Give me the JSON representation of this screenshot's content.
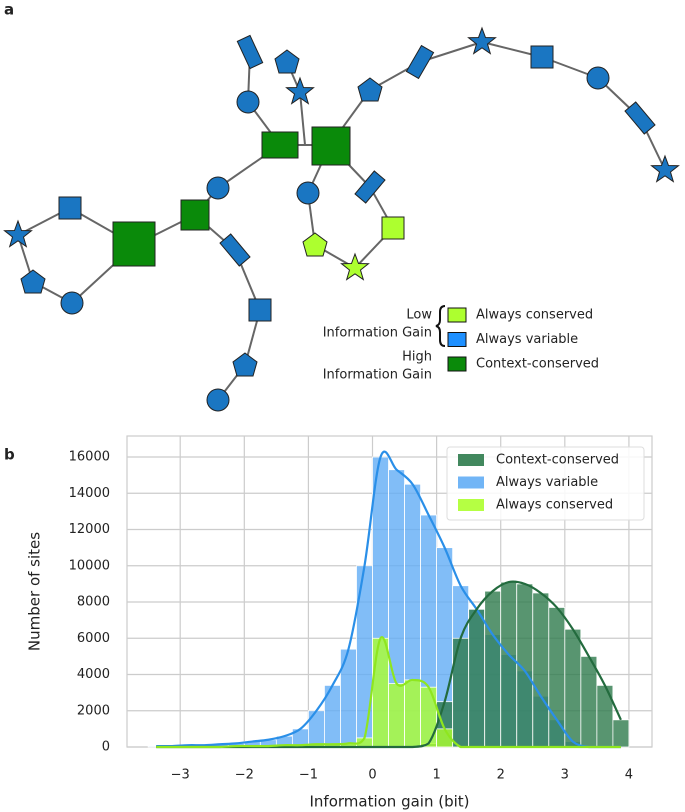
{
  "diagram": {
    "panel_label": "a",
    "legend": {
      "low_top": "Low",
      "low_bottom": "Information Gain",
      "high_top": "High",
      "high_bottom": "Information Gain",
      "entries": [
        {
          "label": "Always conserved",
          "color": "#adff2f"
        },
        {
          "label": "Always variable",
          "color": "#1e90ff"
        },
        {
          "label": "Context-conserved",
          "color": "#0a8a0a"
        }
      ]
    }
  },
  "chart_data": {
    "type": "histogram",
    "panel_label": "b",
    "xlabel": "Information gain (bit)",
    "ylabel": "Number of sites",
    "bins": [
      -3.5,
      -3.25,
      -3,
      -2.75,
      -2.5,
      -2.25,
      -2,
      -1.75,
      -1.5,
      -1.25,
      -1,
      -0.75,
      -0.5,
      -0.25,
      0,
      0.25,
      0.5,
      0.75,
      1,
      1.25,
      1.5,
      1.75,
      2,
      2.25,
      2.5,
      2.75,
      3,
      3.25,
      3.5,
      3.75,
      4
    ],
    "series": [
      {
        "name": "Always variable",
        "color": "#62adf5",
        "line_color": "#2a8fe8",
        "values": [
          50,
          50,
          100,
          100,
          150,
          200,
          300,
          400,
          600,
          1000,
          2000,
          3400,
          5400,
          10000,
          16000,
          15300,
          14500,
          12800,
          11000,
          8900,
          7600,
          6200,
          5100,
          4200,
          2800,
          1500,
          300,
          0,
          0,
          0
        ]
      },
      {
        "name": "Context-conserved",
        "color": "#2e7b4c",
        "line_color": "#236b3e",
        "values": [
          0,
          0,
          0,
          0,
          0,
          0,
          0,
          0,
          0,
          0,
          0,
          0,
          0,
          0,
          0,
          0,
          0,
          200,
          2500,
          6000,
          7600,
          8600,
          9100,
          9000,
          8500,
          7700,
          6500,
          5000,
          3400,
          1500
        ]
      },
      {
        "name": "Always conserved",
        "color": "#adff2f",
        "line_color": "#8fe61f",
        "values": [
          0,
          0,
          0,
          0,
          0,
          50,
          50,
          50,
          100,
          100,
          150,
          150,
          200,
          500,
          6000,
          3500,
          3700,
          3300,
          1000,
          0,
          0,
          0,
          0,
          0,
          0,
          0,
          0,
          0,
          0,
          0
        ]
      }
    ],
    "legend_order": [
      1,
      0,
      2
    ],
    "kde": true,
    "grid": true,
    "legend": "upper right",
    "xlim": [
      -3.83,
      4.36
    ],
    "ylim": [
      0,
      17160
    ],
    "xticks": [
      {
        "value": -3,
        "label": "−3"
      },
      {
        "value": -2,
        "label": "−2"
      },
      {
        "value": -1,
        "label": "−1"
      },
      0,
      1,
      2,
      3,
      4
    ],
    "yticks": [
      0,
      2000,
      4000,
      6000,
      8000,
      10000,
      12000,
      14000,
      16000
    ]
  }
}
